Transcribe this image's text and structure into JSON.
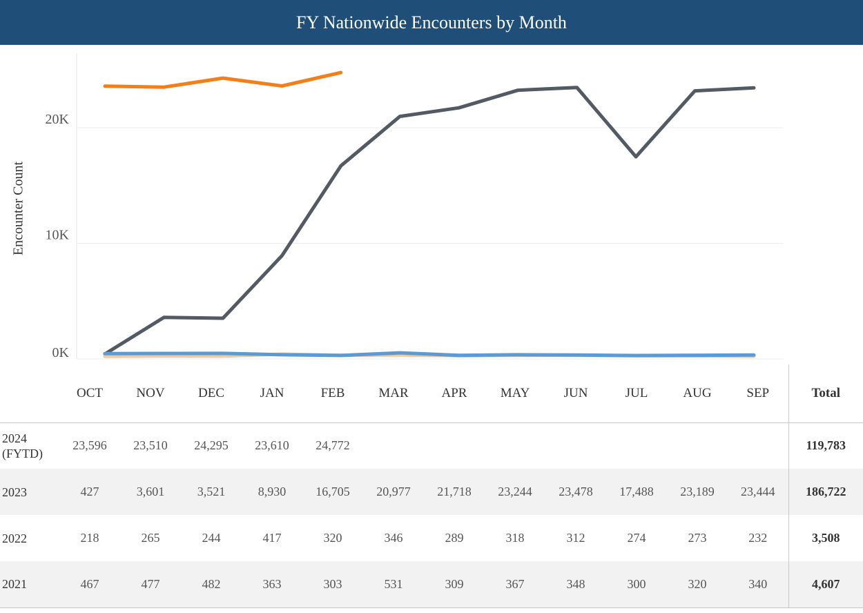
{
  "title": "FY Nationwide Encounters by Month",
  "colors": {
    "header_bg": "#1f4e79",
    "fy2024": "#f57f17",
    "fy2023": "#535a63",
    "fy2022": "#f7c89b",
    "fy2021": "#5b9bd5"
  },
  "chart_data": {
    "type": "line",
    "ylabel": "Encounter Count",
    "yticks": [
      "0K",
      "10K",
      "20K"
    ],
    "ylim": [
      0,
      26000
    ],
    "categories": [
      "OCT",
      "NOV",
      "DEC",
      "JAN",
      "FEB",
      "MAR",
      "APR",
      "MAY",
      "JUN",
      "JUL",
      "AUG",
      "SEP"
    ],
    "grid": true,
    "series": [
      {
        "name": "2024 (FYTD)",
        "color": "#f57f17",
        "values": [
          23596,
          23510,
          24295,
          23610,
          24772,
          null,
          null,
          null,
          null,
          null,
          null,
          null
        ]
      },
      {
        "name": "2023",
        "color": "#535a63",
        "values": [
          427,
          3601,
          3521,
          8930,
          16705,
          20977,
          21718,
          23244,
          23478,
          17488,
          23189,
          23444
        ]
      },
      {
        "name": "2022",
        "color": "#f7c89b",
        "values": [
          218,
          265,
          244,
          417,
          320,
          346,
          289,
          318,
          312,
          274,
          273,
          232
        ]
      },
      {
        "name": "2021",
        "color": "#5b9bd5",
        "values": [
          467,
          477,
          482,
          363,
          303,
          531,
          309,
          367,
          348,
          300,
          320,
          340
        ]
      }
    ]
  },
  "table": {
    "months": [
      "OCT",
      "NOV",
      "DEC",
      "JAN",
      "FEB",
      "MAR",
      "APR",
      "MAY",
      "JUN",
      "JUL",
      "AUG",
      "SEP"
    ],
    "total_label": "Total",
    "rows": [
      {
        "year": "2024",
        "year_sub": "(FYTD)",
        "values": [
          "23,596",
          "23,510",
          "24,295",
          "23,610",
          "24,772",
          "",
          "",
          "",
          "",
          "",
          "",
          ""
        ],
        "total": "119,783"
      },
      {
        "year": "2023",
        "year_sub": "",
        "values": [
          "427",
          "3,601",
          "3,521",
          "8,930",
          "16,705",
          "20,977",
          "21,718",
          "23,244",
          "23,478",
          "17,488",
          "23,189",
          "23,444"
        ],
        "total": "186,722"
      },
      {
        "year": "2022",
        "year_sub": "",
        "values": [
          "218",
          "265",
          "244",
          "417",
          "320",
          "346",
          "289",
          "318",
          "312",
          "274",
          "273",
          "232"
        ],
        "total": "3,508"
      },
      {
        "year": "2021",
        "year_sub": "",
        "values": [
          "467",
          "477",
          "482",
          "363",
          "303",
          "531",
          "309",
          "367",
          "348",
          "300",
          "320",
          "340"
        ],
        "total": "4,607"
      }
    ]
  }
}
